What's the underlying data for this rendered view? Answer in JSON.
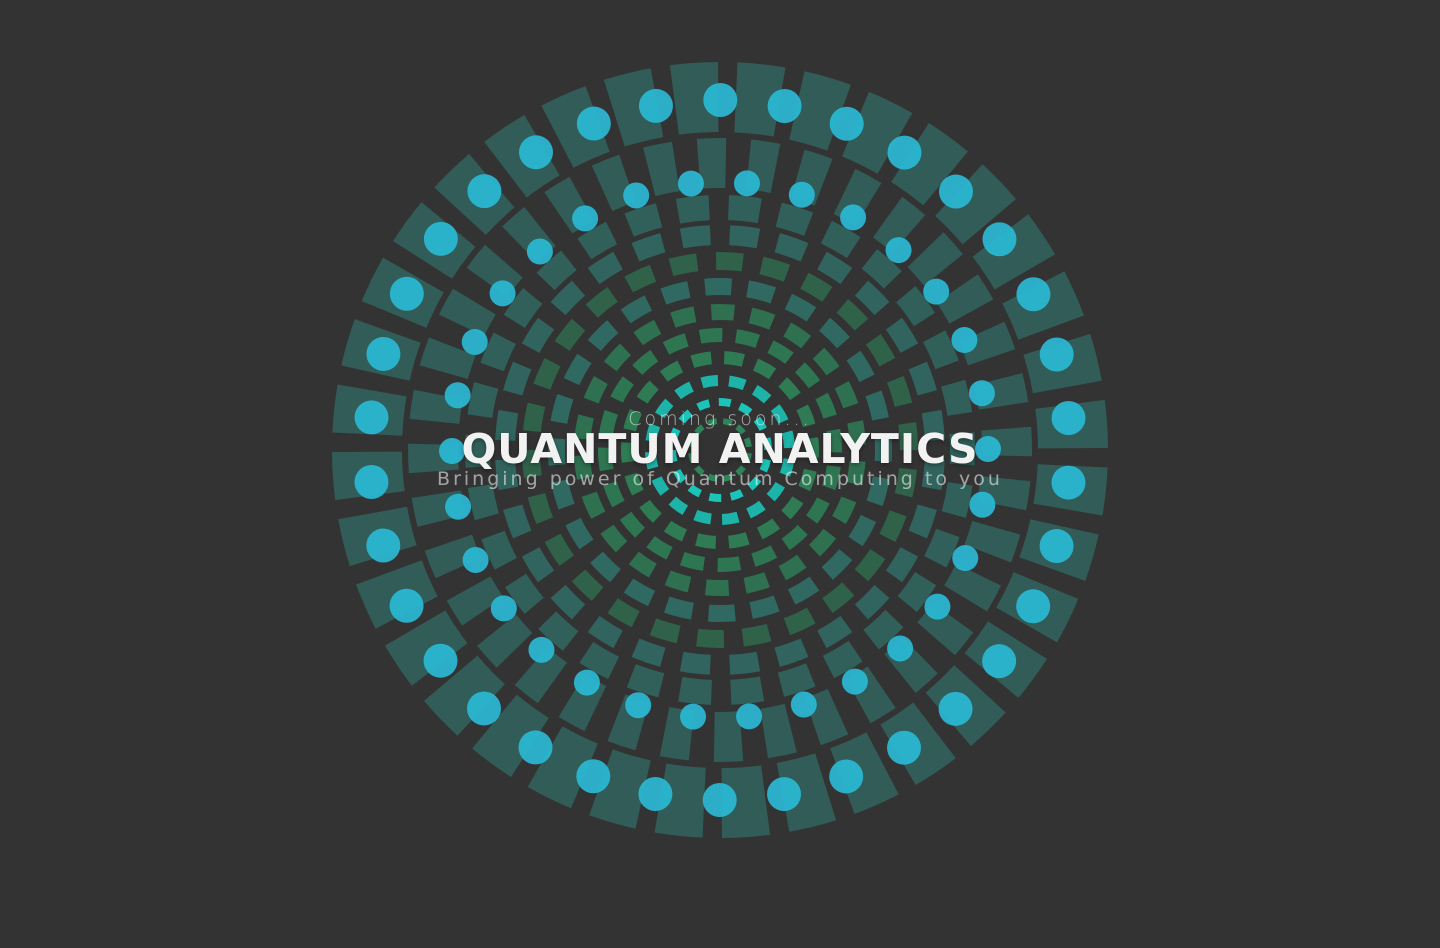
{
  "hero": {
    "eyebrow": "Coming soon...",
    "title": "QUANTUM ANALYTICS",
    "tagline": "Bringing power of Quantum Computing to you"
  },
  "colors": {
    "background": "#333333",
    "dot": "#2bbbd8",
    "tile_teal": "#2f8d82",
    "tile_green": "#2c9a63",
    "tile_cyan": "#18d3c6",
    "text": "#ffffff"
  },
  "icons": {
    "decoration": "radial-dot-mandala"
  }
}
